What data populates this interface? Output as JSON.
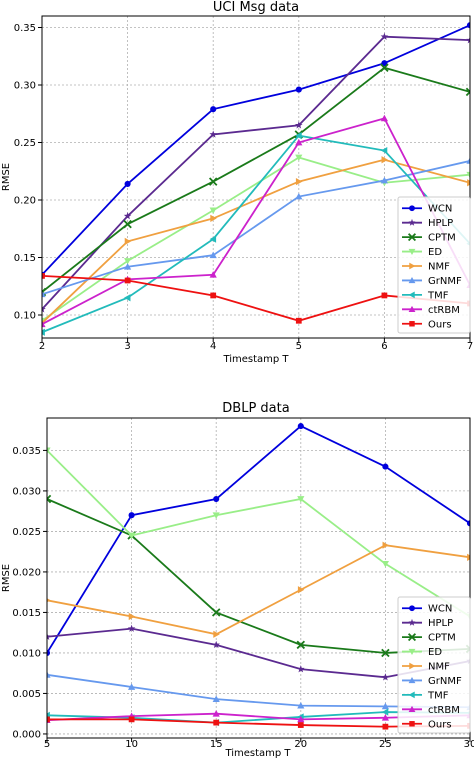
{
  "chart_data": [
    {
      "type": "line",
      "title": "UCI Msg data",
      "xlabel": "Timestamp T",
      "ylabel": "RMSE",
      "x": [
        2,
        3,
        4,
        5,
        6,
        7
      ],
      "xlim": [
        2,
        7
      ],
      "ylim": [
        0.08,
        0.36
      ],
      "xticks": [
        "2",
        "3",
        "4",
        "5",
        "6",
        "7"
      ],
      "yticks": [
        "0.10",
        "0.15",
        "0.20",
        "0.25",
        "0.30",
        "0.35"
      ],
      "grid": true,
      "legend_position": "lower-right",
      "series": [
        {
          "name": "WCN",
          "color": "#0000dd",
          "marker": "circle",
          "values": [
            0.135,
            0.214,
            0.279,
            0.296,
            0.319,
            0.352
          ]
        },
        {
          "name": "HPLP",
          "color": "#5b2a90",
          "marker": "star",
          "values": [
            0.105,
            0.186,
            0.257,
            0.265,
            0.342,
            0.339
          ]
        },
        {
          "name": "CPTM",
          "color": "#1a7a1a",
          "marker": "x",
          "values": [
            0.12,
            0.179,
            0.216,
            0.257,
            0.315,
            0.294
          ]
        },
        {
          "name": "ED",
          "color": "#99ee88",
          "marker": "triangle-down",
          "values": [
            0.095,
            0.147,
            0.191,
            0.237,
            0.215,
            0.222
          ]
        },
        {
          "name": "NMF",
          "color": "#f0a040",
          "marker": "triangle-right",
          "values": [
            0.093,
            0.164,
            0.184,
            0.216,
            0.235,
            0.215
          ]
        },
        {
          "name": "GrNMF",
          "color": "#6699ee",
          "marker": "triangle-up",
          "values": [
            0.118,
            0.142,
            0.152,
            0.203,
            0.217,
            0.234
          ]
        },
        {
          "name": "TMF",
          "color": "#22bbbb",
          "marker": "triangle-left",
          "values": [
            0.085,
            0.115,
            0.166,
            0.256,
            0.243,
            0.162
          ]
        },
        {
          "name": "ctRBM",
          "color": "#cc22cc",
          "marker": "triangle-up",
          "values": [
            0.092,
            0.131,
            0.135,
            0.25,
            0.271,
            0.126
          ]
        },
        {
          "name": "Ours",
          "color": "#ee1111",
          "marker": "square",
          "values": [
            0.134,
            0.13,
            0.117,
            0.095,
            0.117,
            0.11
          ]
        }
      ]
    },
    {
      "type": "line",
      "title": "DBLP data",
      "xlabel": "Timestamp T",
      "ylabel": "RMSE",
      "x": [
        5,
        10,
        15,
        20,
        25,
        30
      ],
      "xlim": [
        5,
        30
      ],
      "ylim": [
        -0.0005,
        0.039
      ],
      "xticks": [
        "5",
        "10",
        "15",
        "20",
        "25",
        "30"
      ],
      "yticks": [
        "0.000",
        "0.005",
        "0.010",
        "0.015",
        "0.020",
        "0.025",
        "0.030",
        "0.035"
      ],
      "grid": true,
      "legend_position": "lower-right",
      "series": [
        {
          "name": "WCN",
          "color": "#0000dd",
          "marker": "circle",
          "values": [
            0.01,
            0.027,
            0.029,
            0.038,
            0.033,
            0.026
          ]
        },
        {
          "name": "HPLP",
          "color": "#5b2a90",
          "marker": "star",
          "values": [
            0.012,
            0.013,
            0.011,
            0.008,
            0.007,
            0.009
          ]
        },
        {
          "name": "CPTM",
          "color": "#1a7a1a",
          "marker": "x",
          "values": [
            0.029,
            0.0245,
            0.015,
            0.011,
            0.01,
            0.0105
          ]
        },
        {
          "name": "ED",
          "color": "#99ee88",
          "marker": "triangle-down",
          "values": [
            0.035,
            0.0245,
            0.027,
            0.029,
            0.021,
            0.0145
          ]
        },
        {
          "name": "NMF",
          "color": "#f0a040",
          "marker": "triangle-right",
          "values": [
            0.0165,
            0.0145,
            0.0123,
            0.0178,
            0.0233,
            0.0218
          ]
        },
        {
          "name": "GrNMF",
          "color": "#6699ee",
          "marker": "triangle-up",
          "values": [
            0.0073,
            0.0058,
            0.0043,
            0.0035,
            0.0034,
            0.0033
          ]
        },
        {
          "name": "TMF",
          "color": "#22bbbb",
          "marker": "triangle-left",
          "values": [
            0.0023,
            0.002,
            0.0014,
            0.0021,
            0.0027,
            0.0026
          ]
        },
        {
          "name": "ctRBM",
          "color": "#cc22cc",
          "marker": "triangle-up",
          "values": [
            0.0017,
            0.0022,
            0.0025,
            0.0018,
            0.002,
            0.0023
          ]
        },
        {
          "name": "Ours",
          "color": "#ee1111",
          "marker": "square",
          "values": [
            0.0018,
            0.0018,
            0.0014,
            0.0011,
            0.0009,
            0.001
          ]
        }
      ]
    }
  ]
}
